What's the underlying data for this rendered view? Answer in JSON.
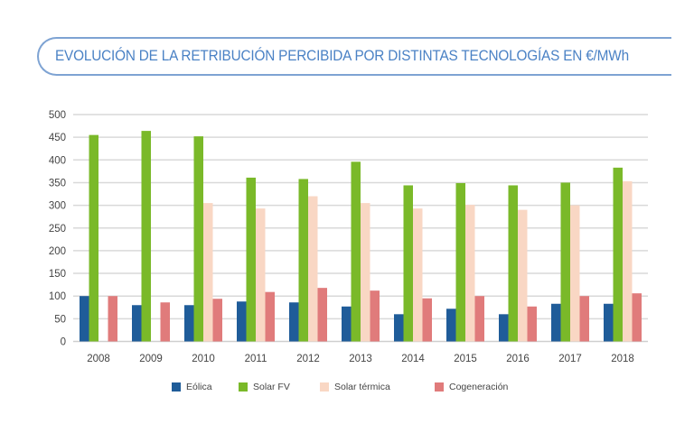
{
  "header": {
    "title": "EVOLUCIÓN DE LA RETRIBUCIÓN PERCIBIDA POR DISTINTAS TECNOLOGÍAS EN €/MWh"
  },
  "colors": {
    "accent": "#4b82c5",
    "border": "#7ea3d3",
    "gridline": "#d9d9d9"
  },
  "chart_data": {
    "type": "bar",
    "title": "EVOLUCIÓN DE LA RETRIBUCIÓN PERCIBIDA POR DISTINTAS TECNOLOGÍAS EN €/MWh",
    "xlabel": "",
    "ylabel": "",
    "ylim": [
      0,
      500
    ],
    "yticks": [
      0,
      50,
      100,
      150,
      200,
      250,
      300,
      350,
      400,
      450,
      500
    ],
    "grid": true,
    "legend_position": "bottom",
    "categories": [
      "2008",
      "2009",
      "2010",
      "2011",
      "2012",
      "2013",
      "2014",
      "2015",
      "2016",
      "2017",
      "2018"
    ],
    "series": [
      {
        "name": "Eólica",
        "color": "#1f5c99",
        "values": [
          100,
          80,
          80,
          88,
          86,
          77,
          60,
          72,
          60,
          83,
          83
        ]
      },
      {
        "name": "Solar FV",
        "color": "#7ab929",
        "values": [
          455,
          464,
          452,
          361,
          358,
          396,
          344,
          349,
          344,
          350,
          383
        ]
      },
      {
        "name": "Solar térmica",
        "color": "#f9d7c4",
        "values": [
          0,
          0,
          305,
          293,
          320,
          305,
          293,
          301,
          290,
          300,
          353
        ]
      },
      {
        "name": "Cogeneración",
        "color": "#e07b7b",
        "values": [
          100,
          86,
          94,
          109,
          118,
          112,
          95,
          100,
          77,
          100,
          106
        ]
      }
    ]
  }
}
